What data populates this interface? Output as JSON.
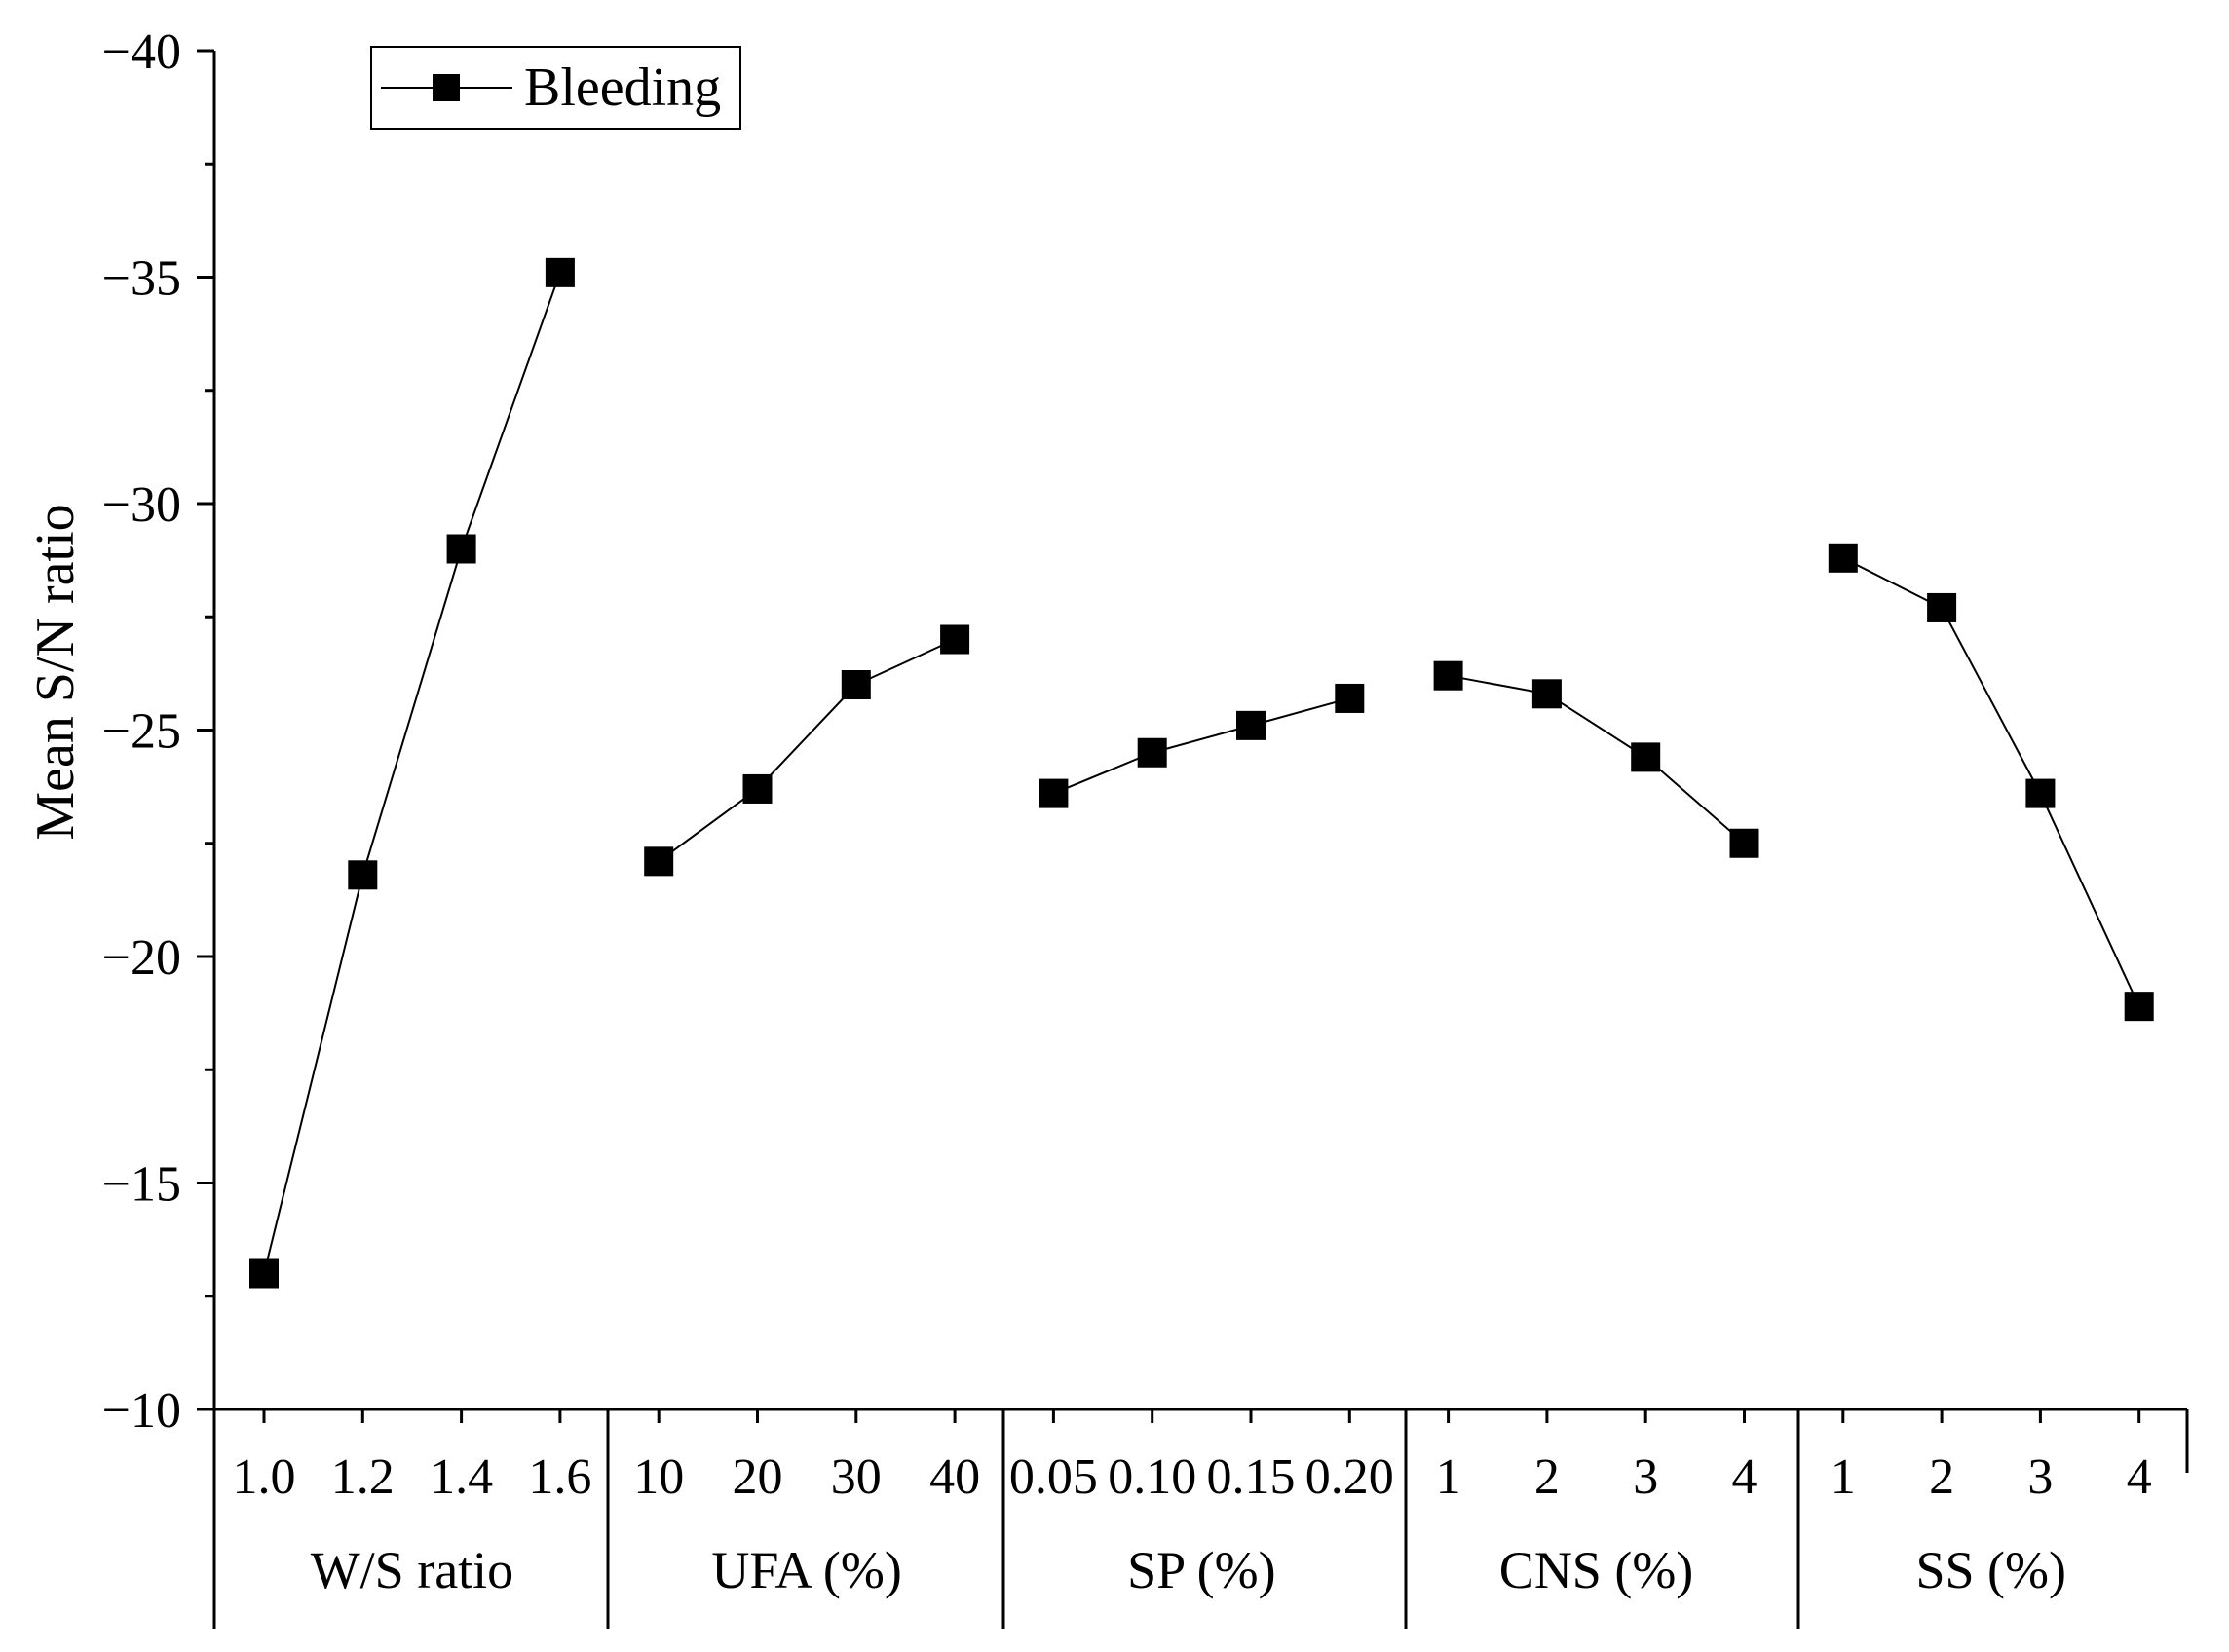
{
  "chart_data": {
    "type": "line",
    "title": "",
    "ylabel": "Mean S/N ratio",
    "ylim": [
      -10,
      -40
    ],
    "y_inverted": true,
    "yticks": [
      -40,
      -35,
      -30,
      -25,
      -20,
      -15,
      -10
    ],
    "ytick_labels": [
      "−40",
      "−35",
      "−30",
      "−25",
      "−20",
      "−15",
      "−10"
    ],
    "legend": {
      "label": "Bleeding",
      "marker": "square",
      "placement": "top-left"
    },
    "series_name": "Bleeding",
    "groups": [
      {
        "name": "W/S ratio",
        "categories": [
          "1.0",
          "1.2",
          "1.4",
          "1.6"
        ],
        "values": [
          -13.0,
          -21.8,
          -29.0,
          -35.1
        ]
      },
      {
        "name": "UFA (%)",
        "categories": [
          "10",
          "20",
          "30",
          "40"
        ],
        "values": [
          -22.1,
          -23.7,
          -26.0,
          -27.0
        ]
      },
      {
        "name": "SP (%)",
        "categories": [
          "0.05",
          "0.10",
          "0.15",
          "0.20"
        ],
        "values": [
          -23.6,
          -24.5,
          -25.1,
          -25.7
        ]
      },
      {
        "name": "CNS (%)",
        "categories": [
          "1",
          "2",
          "3",
          "4"
        ],
        "values": [
          -26.2,
          -25.8,
          -24.4,
          -22.5
        ]
      },
      {
        "name": "SS (%)",
        "categories": [
          "1",
          "2",
          "3",
          "4"
        ],
        "values": [
          -28.8,
          -27.7,
          -23.6,
          -18.9
        ]
      }
    ]
  }
}
